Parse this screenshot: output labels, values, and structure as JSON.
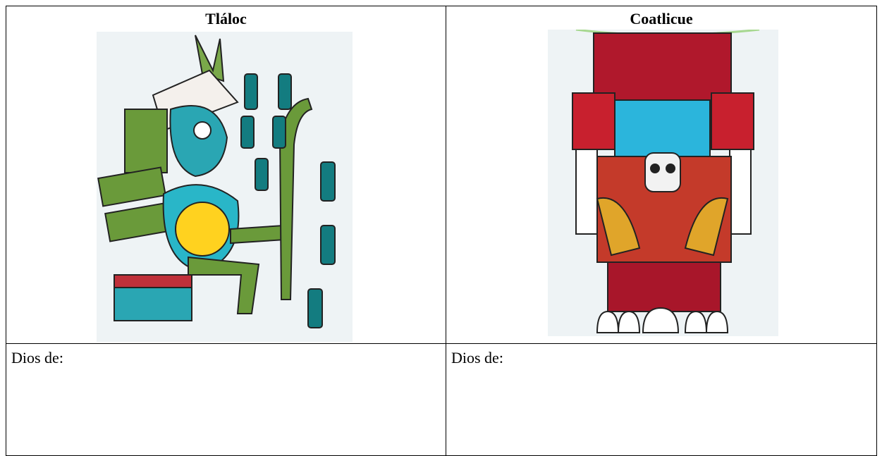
{
  "table": {
    "rows": [
      [
        "Tláloc",
        "Coatlicue"
      ],
      [
        "Dios de:",
        "Dios de:"
      ]
    ]
  }
}
